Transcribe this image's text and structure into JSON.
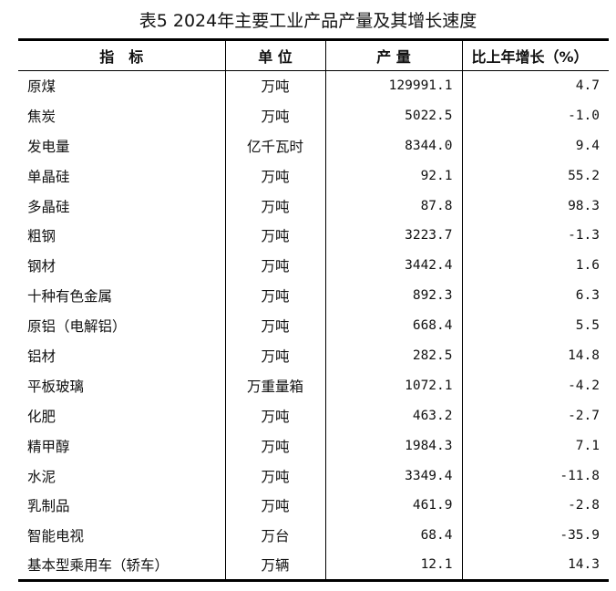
{
  "title": "表5  2024年主要工业产品产量及其增长速度",
  "columns": [
    "指　标",
    "单 位",
    "产 量",
    "比上年增长（%）"
  ],
  "rows": [
    [
      "原煤",
      "万吨",
      "129991.1",
      "4.7"
    ],
    [
      "焦炭",
      "万吨",
      "5022.5",
      "-1.0"
    ],
    [
      "发电量",
      "亿千瓦时",
      "8344.0",
      "9.4"
    ],
    [
      "单晶硅",
      "万吨",
      "92.1",
      "55.2"
    ],
    [
      "多晶硅",
      "万吨",
      "87.8",
      "98.3"
    ],
    [
      "粗钢",
      "万吨",
      "3223.7",
      "-1.3"
    ],
    [
      "钢材",
      "万吨",
      "3442.4",
      "1.6"
    ],
    [
      "十种有色金属",
      "万吨",
      "892.3",
      "6.3"
    ],
    [
      "原铝（电解铝）",
      "万吨",
      "668.4",
      "5.5"
    ],
    [
      "铝材",
      "万吨",
      "282.5",
      "14.8"
    ],
    [
      "平板玻璃",
      "万重量箱",
      "1072.1",
      "-4.2"
    ],
    [
      "化肥",
      "万吨",
      "463.2",
      "-2.7"
    ],
    [
      "精甲醇",
      "万吨",
      "1984.3",
      "7.1"
    ],
    [
      "水泥",
      "万吨",
      "3349.4",
      "-11.8"
    ],
    [
      "乳制品",
      "万吨",
      "461.9",
      "-2.8"
    ],
    [
      "智能电视",
      "万台",
      "68.4",
      "-35.9"
    ],
    [
      "基本型乘用车（轿车）",
      "万辆",
      "12.1",
      "14.3"
    ]
  ]
}
